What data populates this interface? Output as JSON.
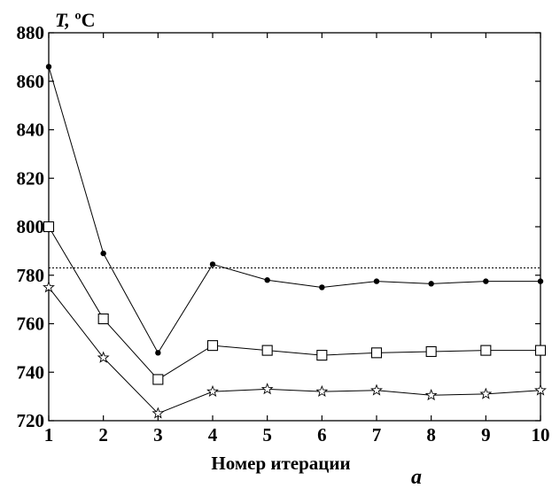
{
  "chart_data": {
    "type": "line",
    "title": "",
    "ylabel_symbol": "T,",
    "ylabel_unit": " ºC",
    "xlabel": "Номер итерации",
    "panel_label": "а",
    "x": [
      1,
      2,
      3,
      4,
      5,
      6,
      7,
      8,
      9,
      10
    ],
    "xlim": [
      1,
      10
    ],
    "ylim": [
      720,
      880
    ],
    "xticks": [
      1,
      2,
      3,
      4,
      5,
      6,
      7,
      8,
      9,
      10
    ],
    "yticks": [
      720,
      740,
      760,
      780,
      800,
      820,
      840,
      860,
      880
    ],
    "reference_line": {
      "y": 783,
      "style": "dotted"
    },
    "series": [
      {
        "marker": "dot",
        "values": [
          866,
          789,
          748,
          784.5,
          778,
          775,
          777.5,
          776.5,
          777.5,
          777.5
        ]
      },
      {
        "marker": "square",
        "values": [
          800,
          762,
          737,
          751,
          749,
          747,
          748,
          748.5,
          749,
          749
        ]
      },
      {
        "marker": "star",
        "values": [
          775,
          746,
          723,
          732,
          733,
          732,
          732.5,
          730.5,
          731,
          732.5
        ]
      }
    ],
    "grid": false,
    "colors": {
      "line": "#000000",
      "reference": "#000000"
    }
  }
}
